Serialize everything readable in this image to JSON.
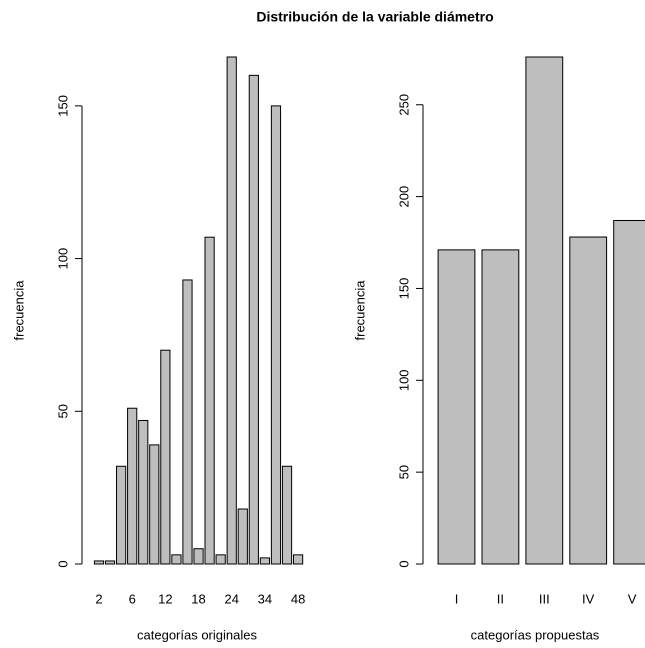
{
  "title": "Distribución de la variable diámetro",
  "chart_data": [
    {
      "type": "bar",
      "xlabel": "categorías originales",
      "ylabel": "frecuencia",
      "categories": [
        "2",
        null,
        null,
        "6",
        null,
        null,
        "12",
        null,
        null,
        "18",
        null,
        null,
        "24",
        null,
        null,
        "34",
        null,
        null,
        "48"
      ],
      "values": [
        1,
        1,
        32,
        51,
        47,
        39,
        70,
        3,
        93,
        5,
        107,
        3,
        166,
        18,
        160,
        2,
        150,
        32,
        3
      ],
      "color": "#bebebe",
      "ylim": [
        0,
        166
      ],
      "yticks": [
        0,
        50,
        100,
        150
      ],
      "grid": false
    },
    {
      "type": "bar",
      "xlabel": "categorías propuestas",
      "ylabel": "frecuencia",
      "categories": [
        "I",
        "II",
        "III",
        "IV",
        "V"
      ],
      "values": [
        171,
        171,
        276,
        178,
        187
      ],
      "color": "#bebebe",
      "ylim": [
        0,
        276
      ],
      "yticks": [
        0,
        50,
        100,
        150,
        200,
        250
      ],
      "grid": false
    }
  ]
}
